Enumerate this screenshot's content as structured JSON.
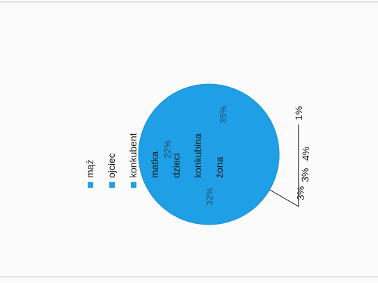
{
  "chart_data": {
    "type": "pie",
    "title": "",
    "rotated": "90deg-counterclockwise",
    "categories": [
      "mąż",
      "ojciec",
      "konkubent",
      "matka",
      "dzieci",
      "konkubina",
      "żona"
    ],
    "values": [
      35,
      32,
      22,
      4,
      3,
      3,
      1
    ],
    "data_labels": [
      "35%",
      "32%",
      "22%",
      "4%",
      "3%",
      "3%",
      "1%"
    ],
    "legend": {
      "placement": "right",
      "entries": [
        "mąż",
        "ojciec",
        "konkubent",
        "matka",
        "dzieci",
        "konkubina",
        "żona"
      ]
    },
    "colors": {
      "slice_fill": "#1f9fe6",
      "slice_edge": "#1a8fd1",
      "legend_swatch": "#1f9fe6",
      "text": "#1a1a1a"
    }
  }
}
